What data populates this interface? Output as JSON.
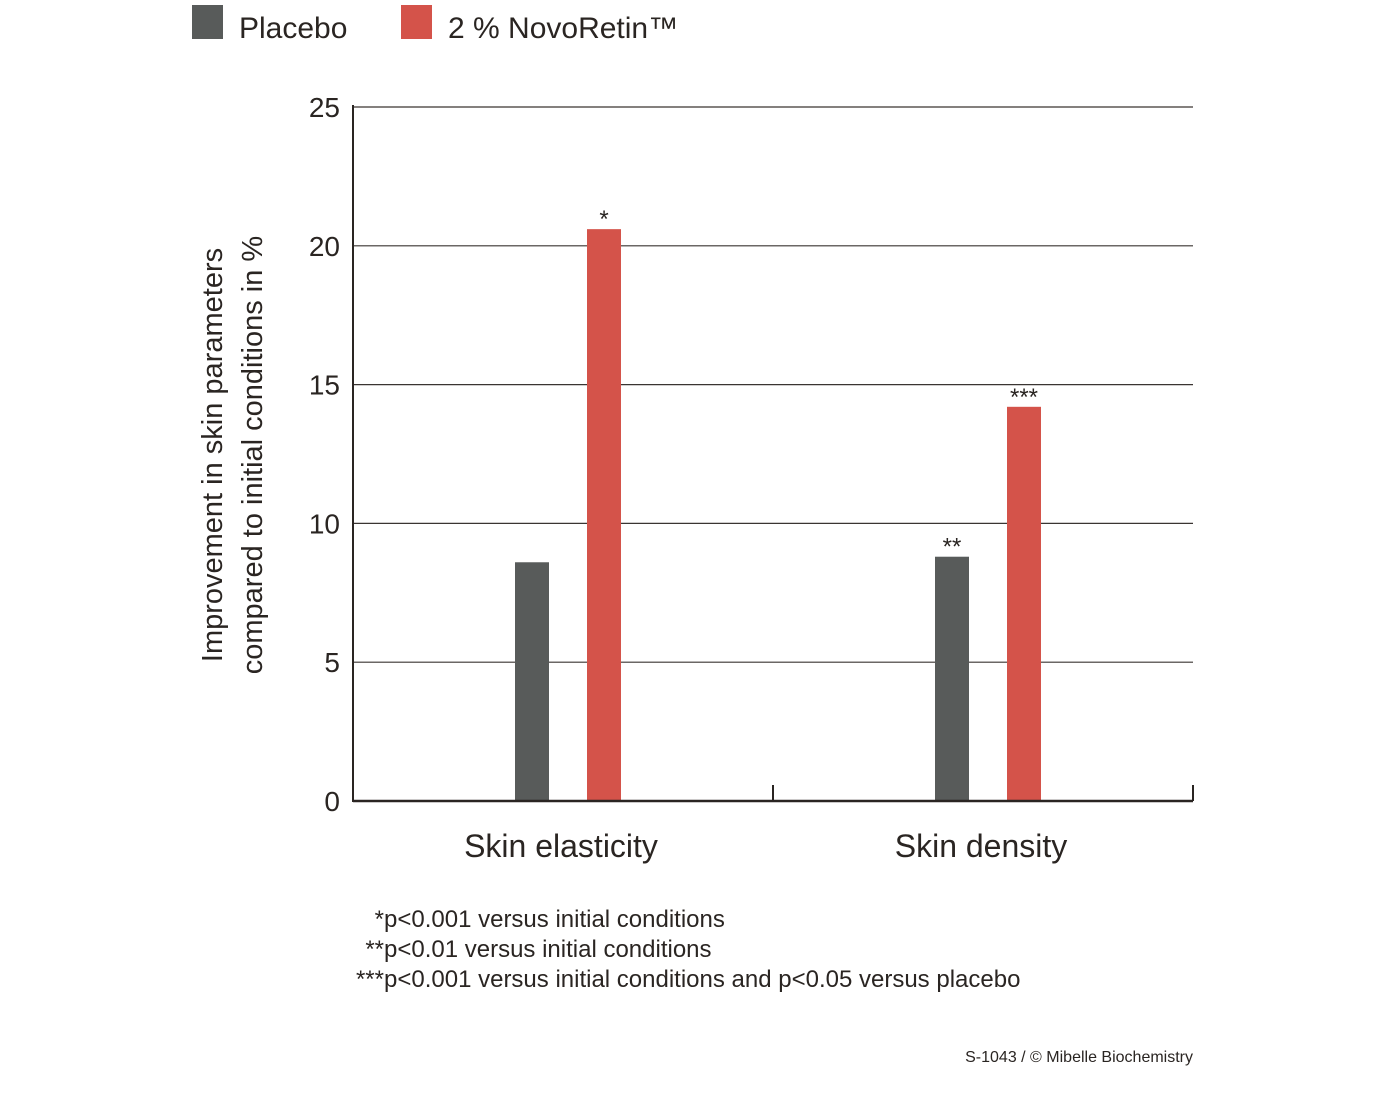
{
  "chart_data": {
    "type": "bar",
    "categories": [
      "Skin elasticity",
      "Skin density"
    ],
    "series": [
      {
        "name": "Placebo",
        "values": [
          8.6,
          8.8
        ],
        "color": "#585b5a",
        "significance": [
          "",
          "**"
        ]
      },
      {
        "name": "2 % NovoRetin™",
        "values": [
          20.6,
          14.2
        ],
        "color": "#d4534a",
        "significance": [
          "*",
          "***"
        ]
      }
    ],
    "title": "",
    "xlabel": "",
    "ylabel_lines": [
      "Improvement in skin parameters",
      "compared to initial conditions in %"
    ],
    "ylim": [
      0,
      25
    ],
    "yticks": [
      0,
      5,
      10,
      15,
      20,
      25
    ],
    "grid": true,
    "legend_position": "top-left",
    "footnotes": [
      "*p<0.001 versus initial conditions",
      "**p<0.01 versus initial conditions",
      "***p<0.001 versus initial conditions and p<0.05 versus placebo"
    ],
    "credit": "S-1043 / © Mibelle Biochemistry"
  }
}
